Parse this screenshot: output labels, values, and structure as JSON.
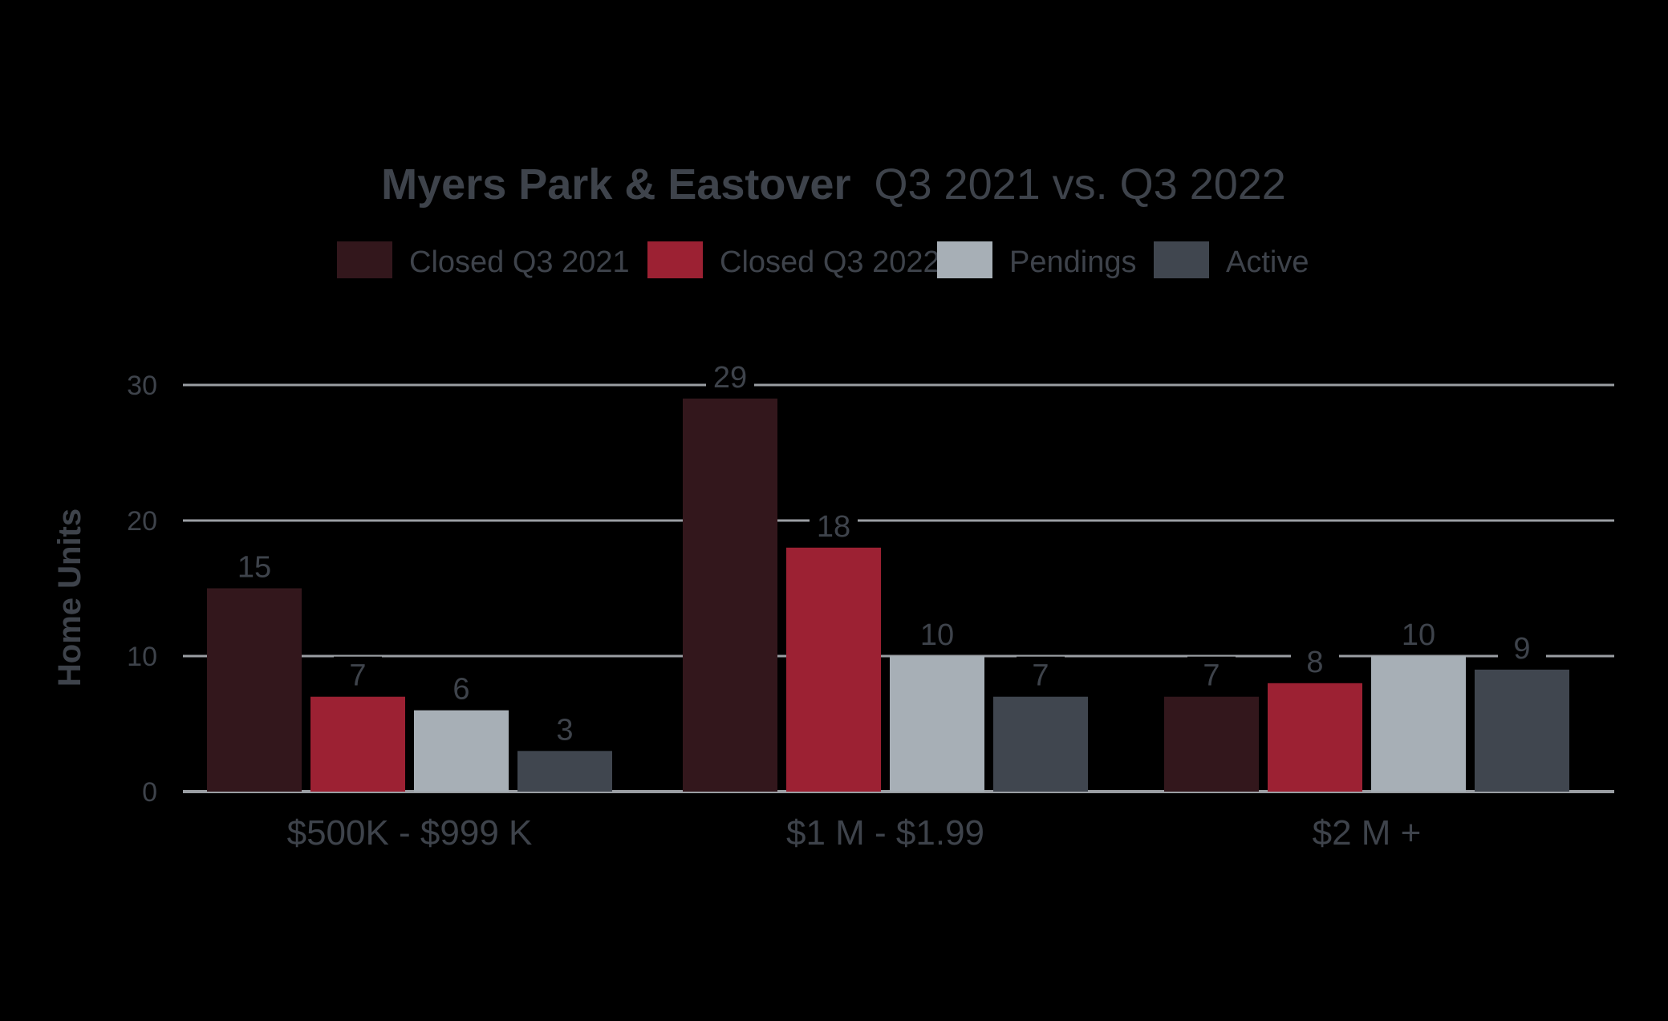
{
  "chart_data": {
    "type": "bar",
    "title_bold": "Myers Park & Eastover",
    "title_rest": "Q3 2021 vs. Q3 2022",
    "ylabel": "Home Units",
    "xlabel": "",
    "ylim": [
      0,
      30
    ],
    "yticks": [
      "0",
      "10",
      "20",
      "30"
    ],
    "grid": true,
    "legend_position": "top-center",
    "categories": [
      "$500K - $999 K",
      "$1 M - $1.99",
      "$2 M +"
    ],
    "series": [
      {
        "name": "Closed Q3 2021",
        "color": "#33171c",
        "values": [
          15,
          29,
          7
        ]
      },
      {
        "name": "Closed Q3 2022",
        "color": "#9c2133",
        "values": [
          7,
          18,
          8
        ]
      },
      {
        "name": "Pendings",
        "color": "#a7afb6",
        "values": [
          6,
          10,
          10
        ]
      },
      {
        "name": "Active",
        "color": "#40464f",
        "values": [
          3,
          7,
          9
        ]
      }
    ],
    "text_color": "#3e434b",
    "grid_color": "#9a9ea3"
  }
}
